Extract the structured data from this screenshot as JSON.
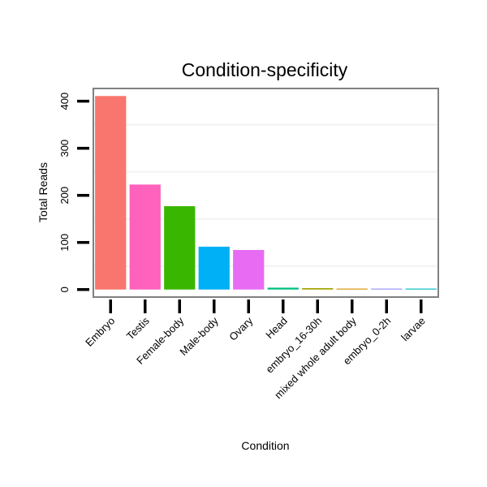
{
  "chart_data": {
    "type": "bar",
    "title": "Condition-specificity",
    "xlabel": "Condition",
    "ylabel": "Total Reads",
    "categories": [
      "Embryo",
      "Testis",
      "Female-body",
      "Male-body",
      "Ovary",
      "Head",
      "embryo_16-30h",
      "mixed whole adult body",
      "embryo_0-2h",
      "larvae"
    ],
    "values": [
      411,
      223,
      177,
      91,
      84,
      4,
      3,
      2,
      2,
      2
    ],
    "colors": [
      "#F8766D",
      "#FF62BC",
      "#39B600",
      "#00B0F6",
      "#E76BF3",
      "#00BF7D",
      "#A3A500",
      "#D89000",
      "#9590FF",
      "#00BFC4"
    ],
    "yticks": [
      0,
      100,
      200,
      300,
      400
    ],
    "ylim": [
      -16,
      427
    ],
    "grid": true,
    "legend": "none"
  }
}
